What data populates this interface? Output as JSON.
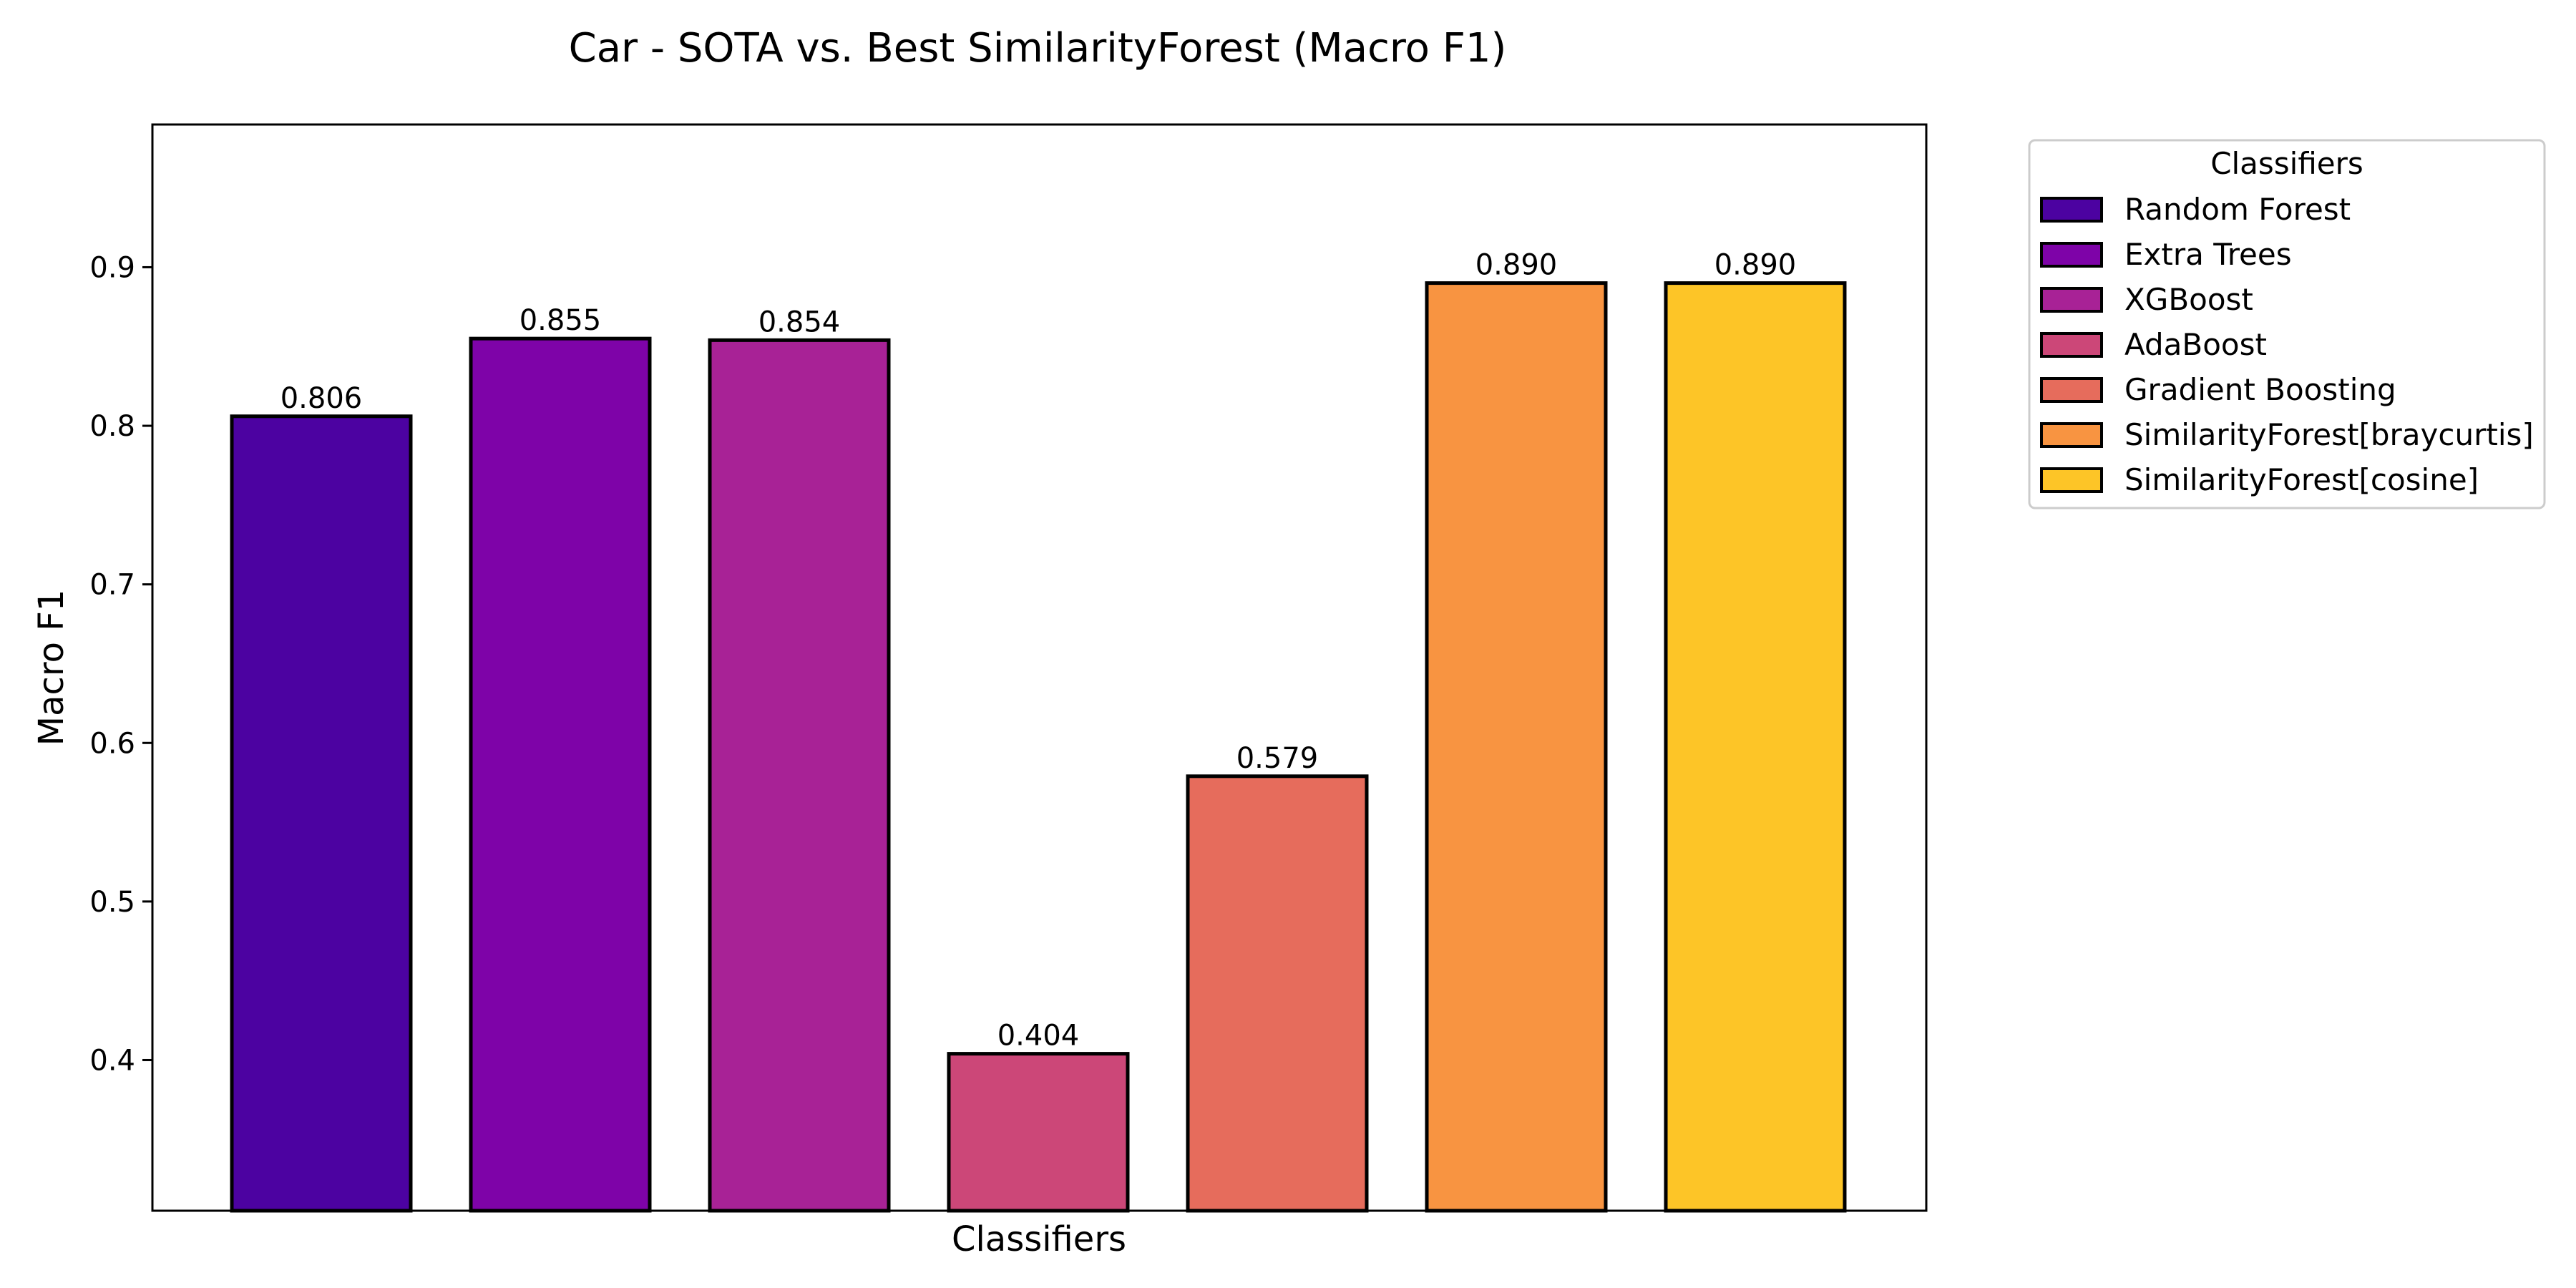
{
  "chart_data": {
    "type": "bar",
    "title": "Car - SOTA vs. Best SimilarityForest (Macro F1)",
    "xlabel": "Classifiers",
    "ylabel": "Macro F1",
    "categories": [
      "Random Forest",
      "Extra Trees",
      "XGBoost",
      "AdaBoost",
      "Gradient Boosting",
      "SimilarityForest[braycurtis]",
      "SimilarityForest[cosine]"
    ],
    "values": [
      0.806,
      0.855,
      0.854,
      0.404,
      0.579,
      0.89,
      0.89
    ],
    "value_labels": [
      "0.806",
      "0.855",
      "0.854",
      "0.404",
      "0.579",
      "0.890",
      "0.890"
    ],
    "colors": [
      "#4c02a1",
      "#7e03a8",
      "#a82296",
      "#cc4778",
      "#e66c5c",
      "#f89441",
      "#fdc527"
    ],
    "ylim": [
      0.305,
      0.99
    ],
    "yticks": [
      0.4,
      0.5,
      0.6,
      0.7,
      0.8,
      0.9
    ],
    "ytick_labels": [
      "0.4",
      "0.5",
      "0.6",
      "0.7",
      "0.8",
      "0.9"
    ],
    "grid": false,
    "legend": {
      "title": "Classifiers",
      "placement": "outside-top-right"
    }
  }
}
